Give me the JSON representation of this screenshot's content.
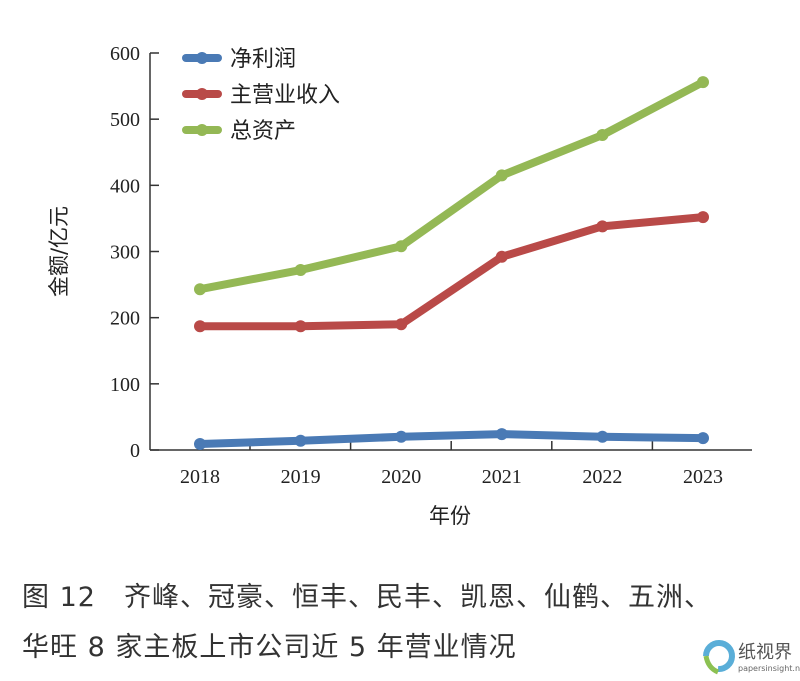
{
  "chart_data": {
    "type": "line",
    "title": "",
    "xlabel": "年份",
    "ylabel": "金额/亿元",
    "categories": [
      "2018",
      "2019",
      "2020",
      "2021",
      "2022",
      "2023"
    ],
    "ylim": [
      0,
      600
    ],
    "yticks": [
      0,
      100,
      200,
      300,
      400,
      500,
      600
    ],
    "grid": false,
    "legend_position": "top-left",
    "series": [
      {
        "name": "净利润",
        "color": "#4a7ab5",
        "values": [
          9,
          14,
          20,
          24,
          20,
          18
        ]
      },
      {
        "name": "主营业收入",
        "color": "#b94a48",
        "values": [
          187,
          187,
          190,
          292,
          338,
          352
        ]
      },
      {
        "name": "总资产",
        "color": "#94b855",
        "values": [
          243,
          272,
          308,
          415,
          476,
          556
        ]
      }
    ]
  },
  "caption": {
    "line1": "图 12　齐峰、冠豪、恒丰、民丰、凯恩、仙鹤、五洲、",
    "line2": "华旺 8 家主板上市公司近 5 年营业情况"
  },
  "watermark": {
    "text": "纸视界",
    "url": "papersinsight.net"
  }
}
